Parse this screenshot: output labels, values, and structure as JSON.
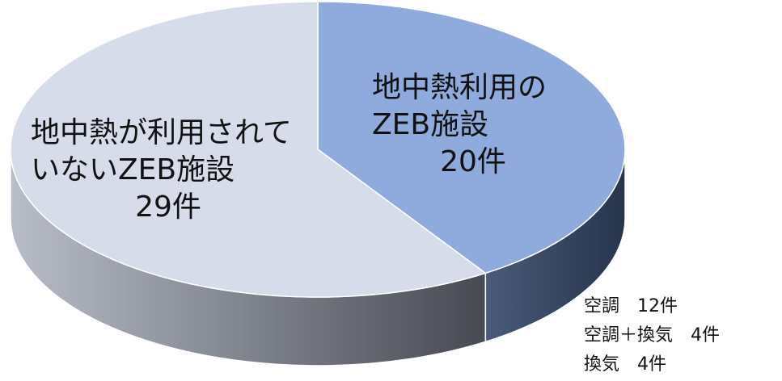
{
  "chart_data": {
    "type": "pie3d",
    "categories": [
      "地中熱利用のZEB施設",
      "地中熱が利用されていないZEB施設"
    ],
    "values": [
      20,
      29
    ],
    "value_labels": [
      "20件",
      "29件"
    ],
    "colors": [
      "#8faadc",
      "#d6dcea"
    ],
    "annotations": [
      "空調　12件",
      "空調＋換気　4件",
      "換気　4件"
    ]
  }
}
